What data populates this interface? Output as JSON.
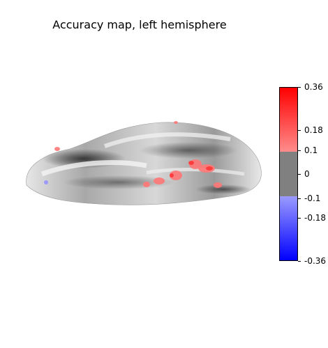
{
  "title": "Accuracy map, left hemisphere",
  "colorbar": {
    "ticks": [
      {
        "label": "0.36",
        "value": 0.36
      },
      {
        "label": "0.18",
        "value": 0.18
      },
      {
        "label": "0.1",
        "value": 0.1
      },
      {
        "label": "0",
        "value": 0
      },
      {
        "label": "-0.1",
        "value": -0.1
      },
      {
        "label": "-0.18",
        "value": -0.18
      },
      {
        "label": "-0.36",
        "value": -0.36
      }
    ],
    "colors": {
      "max": "#ff0000",
      "high": "#ff8c8c",
      "mid": "#808080",
      "low": "#9a9aff",
      "min": "#0000ff"
    }
  }
}
